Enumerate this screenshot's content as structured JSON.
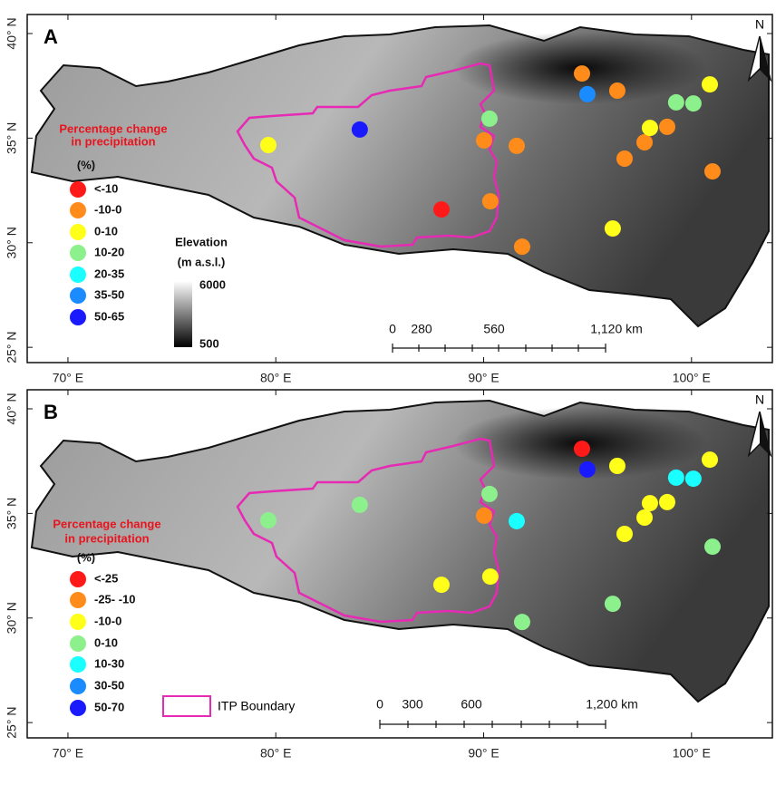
{
  "panels": [
    {
      "label": "A",
      "xlim": [
        68.04,
        103.89
      ],
      "ylim": [
        24.27,
        40.91
      ],
      "xticks": [
        {
          "value": 70,
          "label": "70° E"
        },
        {
          "value": 80,
          "label": "80° E"
        },
        {
          "value": 90,
          "label": "90° E"
        },
        {
          "value": 100,
          "label": "100° E"
        }
      ],
      "yticks": [
        {
          "value": 40,
          "label": "40° N"
        },
        {
          "value": 35,
          "label": "35° N"
        },
        {
          "value": 30,
          "label": "30° N"
        },
        {
          "value": 25,
          "label": "25° N"
        }
      ],
      "north": "N",
      "legend": {
        "title": [
          "Percentage change",
          "in precipitation"
        ],
        "unit": "(%)",
        "items": [
          {
            "label": "<-10",
            "color": "#ff1a1a",
            "stations": [
              {
                "lon": 87.97,
                "lat": 31.59
              }
            ]
          },
          {
            "label": "-10-0",
            "color": "#ff8c1a",
            "stations": [
              {
                "lon": 94.73,
                "lat": 38.09
              },
              {
                "lon": 96.43,
                "lat": 37.27
              },
              {
                "lon": 90.02,
                "lat": 34.89
              },
              {
                "lon": 91.59,
                "lat": 34.63
              },
              {
                "lon": 98.83,
                "lat": 35.54
              },
              {
                "lon": 97.74,
                "lat": 34.8
              },
              {
                "lon": 96.78,
                "lat": 34.02
              },
              {
                "lon": 101.01,
                "lat": 33.41
              },
              {
                "lon": 90.32,
                "lat": 31.98
              },
              {
                "lon": 91.85,
                "lat": 29.81
              }
            ]
          },
          {
            "label": "0-10",
            "color": "#ffff1a",
            "stations": [
              {
                "lon": 100.88,
                "lat": 37.57
              },
              {
                "lon": 79.64,
                "lat": 34.67
              },
              {
                "lon": 98.0,
                "lat": 35.49
              },
              {
                "lon": 96.21,
                "lat": 30.68
              }
            ]
          },
          {
            "label": "10-20",
            "color": "#8cf08c",
            "stations": [
              {
                "lon": 99.26,
                "lat": 36.71
              },
              {
                "lon": 100.09,
                "lat": 36.66
              },
              {
                "lon": 90.28,
                "lat": 35.93
              }
            ]
          },
          {
            "label": "20-35",
            "color": "#1affff",
            "stations": []
          },
          {
            "label": "35-50",
            "color": "#1a8cff",
            "stations": [
              {
                "lon": 94.99,
                "lat": 37.1
              }
            ]
          },
          {
            "label": "50-65",
            "color": "#1a1aff",
            "stations": [
              {
                "lon": 84.04,
                "lat": 35.41
              }
            ]
          }
        ]
      },
      "elevation": {
        "title": [
          "Elevation",
          "(m a.s.l.)"
        ],
        "high": "6000",
        "low": "500"
      },
      "scale_bar": [
        "0",
        "280",
        "560",
        "1,120 km"
      ]
    },
    {
      "label": "B",
      "xlim": [
        68.04,
        103.89
      ],
      "ylim": [
        24.27,
        40.91
      ],
      "xticks": [
        {
          "value": 70,
          "label": "70° E"
        },
        {
          "value": 80,
          "label": "80° E"
        },
        {
          "value": 90,
          "label": "90° E"
        },
        {
          "value": 100,
          "label": "100° E"
        }
      ],
      "yticks": [
        {
          "value": 40,
          "label": "40° N"
        },
        {
          "value": 35,
          "label": "35° N"
        },
        {
          "value": 30,
          "label": "30° N"
        },
        {
          "value": 25,
          "label": "25° N"
        }
      ],
      "north": "N",
      "legend": {
        "title": [
          "Percentage change",
          "in precipitation"
        ],
        "unit": "(%)",
        "items": [
          {
            "label": "<-25",
            "color": "#ff1a1a",
            "stations": [
              {
                "lon": 94.73,
                "lat": 38.09
              }
            ]
          },
          {
            "label": "-25- -10",
            "color": "#ff8c1a",
            "stations": [
              {
                "lon": 90.02,
                "lat": 34.89
              }
            ]
          },
          {
            "label": "-10-0",
            "color": "#ffff1a",
            "stations": [
              {
                "lon": 96.43,
                "lat": 37.27
              },
              {
                "lon": 100.88,
                "lat": 37.57
              },
              {
                "lon": 98.0,
                "lat": 35.49
              },
              {
                "lon": 98.83,
                "lat": 35.54
              },
              {
                "lon": 97.74,
                "lat": 34.8
              },
              {
                "lon": 96.78,
                "lat": 34.02
              },
              {
                "lon": 90.32,
                "lat": 31.98
              },
              {
                "lon": 87.97,
                "lat": 31.59
              }
            ]
          },
          {
            "label": "0-10",
            "color": "#8cf08c",
            "stations": [
              {
                "lon": 90.28,
                "lat": 35.93
              },
              {
                "lon": 84.04,
                "lat": 35.41
              },
              {
                "lon": 79.64,
                "lat": 34.67
              },
              {
                "lon": 101.01,
                "lat": 33.41
              },
              {
                "lon": 96.21,
                "lat": 30.68
              },
              {
                "lon": 91.85,
                "lat": 29.81
              }
            ]
          },
          {
            "label": "10-30",
            "color": "#1affff",
            "stations": [
              {
                "lon": 99.26,
                "lat": 36.71
              },
              {
                "lon": 100.09,
                "lat": 36.66
              },
              {
                "lon": 91.59,
                "lat": 34.63
              }
            ]
          },
          {
            "label": "30-50",
            "color": "#1a8cff",
            "stations": []
          },
          {
            "label": "50-70",
            "color": "#1a1aff",
            "stations": [
              {
                "lon": 94.99,
                "lat": 37.1
              }
            ]
          }
        ]
      },
      "boundary_legend": "ITP Boundary",
      "scale_bar": [
        "0",
        "300",
        "600",
        "1,200 km"
      ]
    }
  ]
}
